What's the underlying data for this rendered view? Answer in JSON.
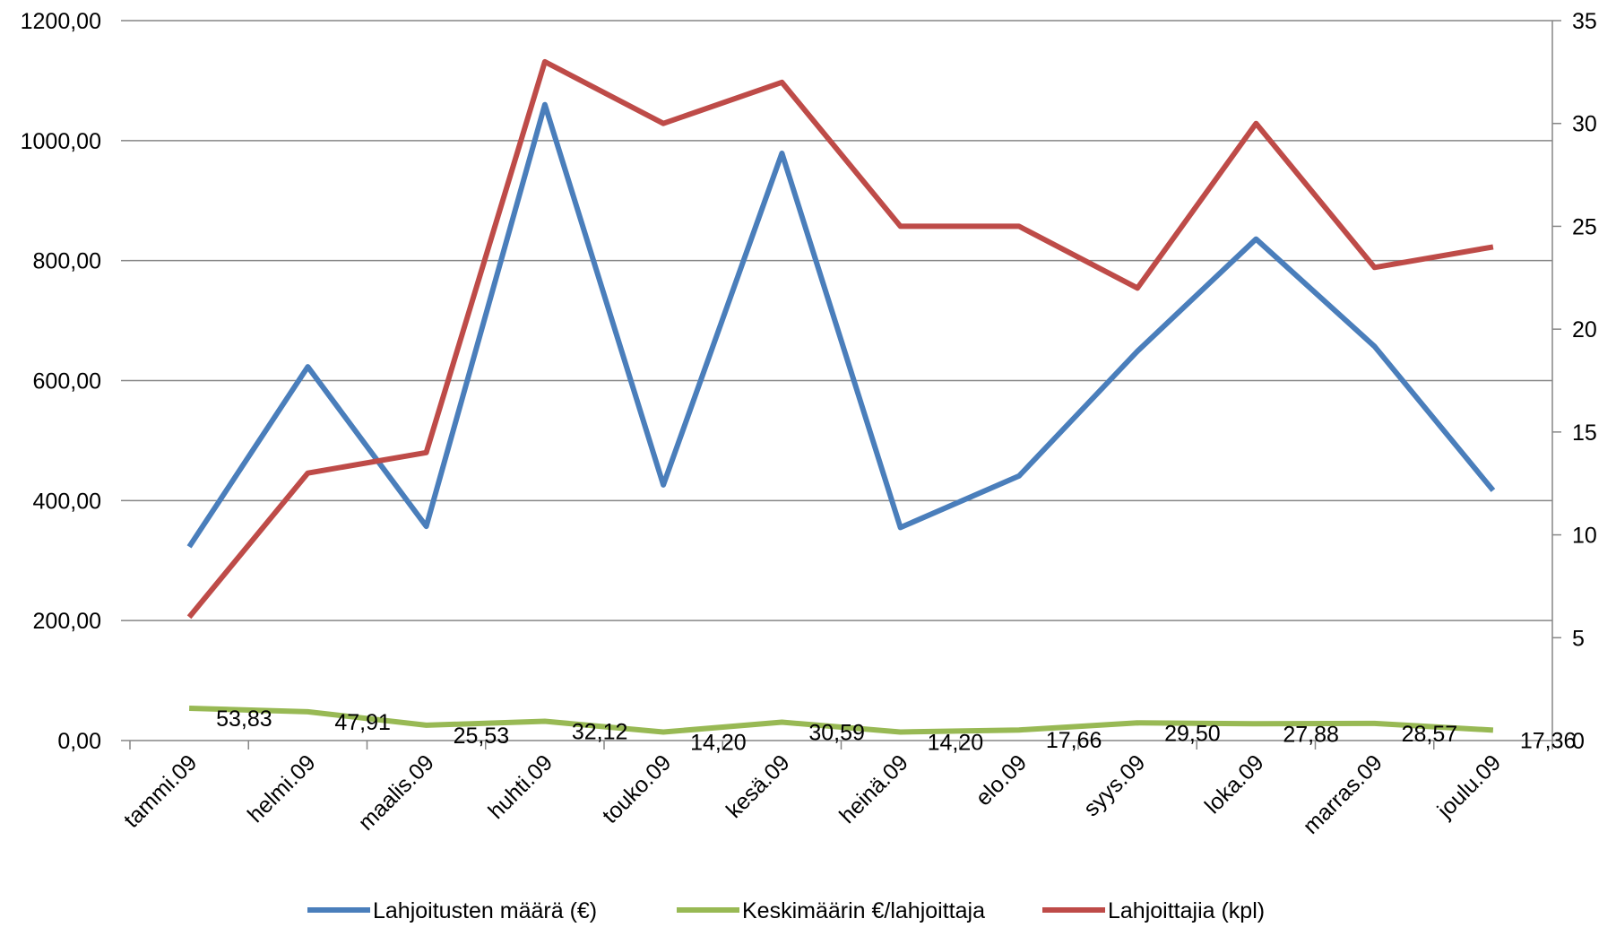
{
  "chart_data": {
    "type": "line",
    "categories": [
      "tammi.09",
      "helmi.09",
      "maalis.09",
      "huhti.09",
      "touko.09",
      "kesä.09",
      "heinä.09",
      "elo.09",
      "syys.09",
      "loka.09",
      "marras.09",
      "joulu.09"
    ],
    "y_left": {
      "range": [
        0,
        1200
      ],
      "ticks": [
        0,
        200,
        400,
        600,
        800,
        1000,
        1200
      ],
      "tick_labels": [
        "0,00",
        "200,00",
        "400,00",
        "600,00",
        "800,00",
        "1000,00",
        "1200,00"
      ]
    },
    "y_right": {
      "range": [
        0,
        35
      ],
      "ticks": [
        0,
        5,
        10,
        15,
        20,
        25,
        30,
        35
      ],
      "tick_labels": [
        "0",
        "5",
        "10",
        "15",
        "20",
        "25",
        "30",
        "35"
      ]
    },
    "grid": "horizontal",
    "legend_position": "bottom",
    "series": [
      {
        "name": "Lahjoitusten määrä (€)",
        "axis": "left",
        "color": "#4a7ebb",
        "values": [
          323,
          623,
          357,
          1060,
          426,
          979,
          355,
          441,
          649,
          836,
          657,
          417
        ]
      },
      {
        "name": "Keskimäärin €/lahjoittaja",
        "axis": "left",
        "color": "#98b954",
        "values": [
          53.83,
          47.91,
          25.53,
          32.12,
          14.2,
          30.59,
          14.2,
          17.66,
          29.5,
          27.88,
          28.57,
          17.36
        ],
        "data_labels": [
          "53,83",
          "47,91",
          "25,53",
          "32,12",
          "14,20",
          "30,59",
          "14,20",
          "17,66",
          "29,50",
          "27,88",
          "28,57",
          "17,36"
        ]
      },
      {
        "name": "Lahjoittajia (kpl)",
        "axis": "right",
        "color": "#be4b48",
        "values": [
          6,
          13,
          14,
          33,
          30,
          32,
          25,
          25,
          22,
          30,
          23,
          24
        ]
      }
    ]
  }
}
